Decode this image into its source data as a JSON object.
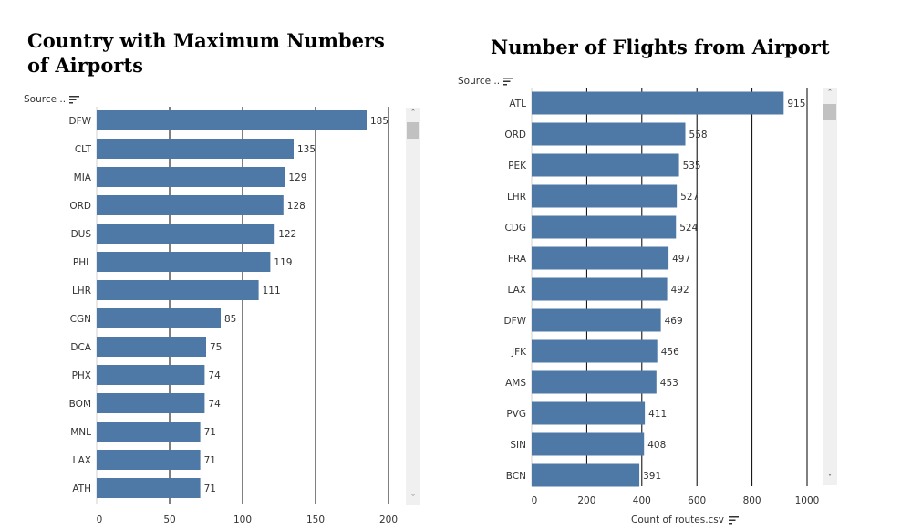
{
  "left": {
    "title": "Country with Maximum Numbers of Airports",
    "source_label": "Source ..",
    "sort_icon": "sort-descending-icon"
  },
  "right": {
    "title": "Number of Flights from Airport",
    "source_label": "Source ..",
    "sort_icon": "sort-descending-icon",
    "axis_title": "Count of routes.csv"
  },
  "colors": {
    "bar": "#4e79a7",
    "grid": "#000000",
    "label": "#333333"
  },
  "chart_data": [
    {
      "type": "bar",
      "orientation": "horizontal",
      "title": "Country with Maximum Numbers of Airports",
      "categories": [
        "DFW",
        "CLT",
        "MIA",
        "ORD",
        "DUS",
        "PHL",
        "LHR",
        "CGN",
        "DCA",
        "PHX",
        "BOM",
        "MNL",
        "LAX",
        "ATH"
      ],
      "values": [
        185,
        135,
        129,
        128,
        122,
        119,
        111,
        85,
        75,
        74,
        74,
        71,
        71,
        71
      ],
      "xlim": [
        0,
        200
      ],
      "xticks": [
        0,
        50,
        100,
        150,
        200
      ],
      "grid": true
    },
    {
      "type": "bar",
      "orientation": "horizontal",
      "title": "Number of Flights from Airport",
      "xlabel": "Count of routes.csv",
      "categories": [
        "ATL",
        "ORD",
        "PEK",
        "LHR",
        "CDG",
        "FRA",
        "LAX",
        "DFW",
        "JFK",
        "AMS",
        "PVG",
        "SIN",
        "BCN"
      ],
      "values": [
        915,
        558,
        535,
        527,
        524,
        497,
        492,
        469,
        456,
        453,
        411,
        408,
        391
      ],
      "xlim": [
        0,
        1000
      ],
      "xticks": [
        0,
        200,
        400,
        600,
        800,
        1000
      ],
      "grid": true
    }
  ]
}
